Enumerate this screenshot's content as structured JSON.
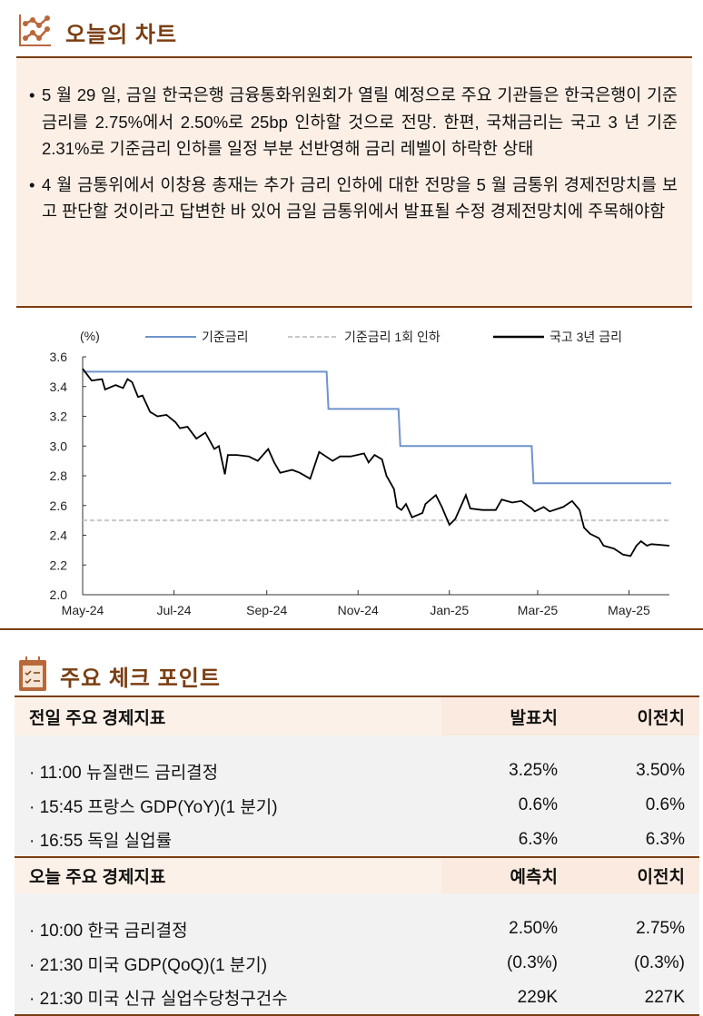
{
  "chart_section": {
    "title": "오늘의 차트",
    "icon": "line-chart-icon"
  },
  "summary": {
    "bullets": [
      "5 월 29 일, 금일 한국은행 금융통화위원회가 열릴 예정으로 주요 기관들은 한국은행이 기준금리를 2.75%에서 2.50%로 25bp 인하할 것으로 전망. 한편, 국채금리는 국고 3 년 기준 2.31%로 기준금리 인하를 일정 부분 선반영해 금리 레벨이 하락한 상태",
      "4 월 금통위에서 이창용 총재는 추가 금리 인하에 대한 전망을 5 월 금통위 경제전망치를 보고 판단할 것이라고 답변한 바 있어 금일 금통위에서 발표될 수정 경제전망치에 주목해야함"
    ]
  },
  "chart_data": {
    "type": "line",
    "unit_label": "(%)",
    "ylim": [
      2.0,
      3.6
    ],
    "y_ticks": [
      "2.0",
      "2.2",
      "2.4",
      "2.6",
      "2.8",
      "3.0",
      "3.2",
      "3.4",
      "3.6"
    ],
    "x_range": [
      "2024-05-01",
      "2025-05-28"
    ],
    "x_ticks": [
      {
        "date": "2024-05-01",
        "label": "May-24"
      },
      {
        "date": "2024-07-01",
        "label": "Jul-24"
      },
      {
        "date": "2024-09-01",
        "label": "Sep-24"
      },
      {
        "date": "2024-11-01",
        "label": "Nov-24"
      },
      {
        "date": "2025-01-01",
        "label": "Jan-25"
      },
      {
        "date": "2025-03-01",
        "label": "Mar-25"
      },
      {
        "date": "2025-05-01",
        "label": "May-25"
      }
    ],
    "grid": false,
    "legend_position": "top",
    "series": [
      {
        "name": "기준금리",
        "color": "#6f93cc",
        "style": "step",
        "points": [
          [
            "2024-05-01",
            3.5
          ],
          [
            "2024-10-11",
            3.25
          ],
          [
            "2024-11-28",
            3.0
          ],
          [
            "2025-02-25",
            2.75
          ],
          [
            "2025-05-28",
            2.75
          ]
        ]
      },
      {
        "name": "기준금리 1회 인하",
        "color": "#c8c8c8",
        "style": "dashed",
        "points": [
          [
            "2024-05-01",
            2.5
          ],
          [
            "2025-05-28",
            2.5
          ]
        ]
      },
      {
        "name": "국고 3년 금리",
        "color": "#000000",
        "style": "solid",
        "points": [
          [
            "2024-05-01",
            3.52
          ],
          [
            "2024-05-07",
            3.44
          ],
          [
            "2024-05-14",
            3.45
          ],
          [
            "2024-05-16",
            3.38
          ],
          [
            "2024-05-23",
            3.41
          ],
          [
            "2024-05-28",
            3.39
          ],
          [
            "2024-05-31",
            3.45
          ],
          [
            "2024-06-03",
            3.43
          ],
          [
            "2024-06-07",
            3.33
          ],
          [
            "2024-06-10",
            3.34
          ],
          [
            "2024-06-15",
            3.23
          ],
          [
            "2024-06-20",
            3.2
          ],
          [
            "2024-06-26",
            3.21
          ],
          [
            "2024-07-02",
            3.16
          ],
          [
            "2024-07-05",
            3.12
          ],
          [
            "2024-07-10",
            3.13
          ],
          [
            "2024-07-16",
            3.05
          ],
          [
            "2024-07-22",
            3.09
          ],
          [
            "2024-07-28",
            2.98
          ],
          [
            "2024-07-31",
            3.0
          ],
          [
            "2024-08-04",
            2.81
          ],
          [
            "2024-08-06",
            2.94
          ],
          [
            "2024-08-12",
            2.94
          ],
          [
            "2024-08-20",
            2.93
          ],
          [
            "2024-08-26",
            2.9
          ],
          [
            "2024-09-02",
            2.98
          ],
          [
            "2024-09-06",
            2.89
          ],
          [
            "2024-09-10",
            2.82
          ],
          [
            "2024-09-18",
            2.84
          ],
          [
            "2024-09-23",
            2.82
          ],
          [
            "2024-09-30",
            2.78
          ],
          [
            "2024-10-06",
            2.96
          ],
          [
            "2024-10-15",
            2.9
          ],
          [
            "2024-10-20",
            2.93
          ],
          [
            "2024-10-27",
            2.93
          ],
          [
            "2024-11-05",
            2.95
          ],
          [
            "2024-11-08",
            2.89
          ],
          [
            "2024-11-12",
            2.94
          ],
          [
            "2024-11-17",
            2.91
          ],
          [
            "2024-11-20",
            2.8
          ],
          [
            "2024-11-25",
            2.71
          ],
          [
            "2024-11-27",
            2.59
          ],
          [
            "2024-11-30",
            2.57
          ],
          [
            "2024-12-03",
            2.61
          ],
          [
            "2024-12-07",
            2.52
          ],
          [
            "2024-12-14",
            2.55
          ],
          [
            "2024-12-16",
            2.61
          ],
          [
            "2024-12-23",
            2.67
          ],
          [
            "2024-12-27",
            2.59
          ],
          [
            "2025-01-01",
            2.47
          ],
          [
            "2025-01-05",
            2.51
          ],
          [
            "2025-01-12",
            2.67
          ],
          [
            "2025-01-15",
            2.58
          ],
          [
            "2025-01-23",
            2.57
          ],
          [
            "2025-02-01",
            2.57
          ],
          [
            "2025-02-05",
            2.64
          ],
          [
            "2025-02-12",
            2.62
          ],
          [
            "2025-02-18",
            2.63
          ],
          [
            "2025-02-25",
            2.58
          ],
          [
            "2025-02-27",
            2.56
          ],
          [
            "2025-03-05",
            2.59
          ],
          [
            "2025-03-09",
            2.56
          ],
          [
            "2025-03-18",
            2.59
          ],
          [
            "2025-03-24",
            2.63
          ],
          [
            "2025-03-29",
            2.57
          ],
          [
            "2025-04-01",
            2.45
          ],
          [
            "2025-04-05",
            2.41
          ],
          [
            "2025-04-11",
            2.38
          ],
          [
            "2025-04-14",
            2.33
          ],
          [
            "2025-04-21",
            2.31
          ],
          [
            "2025-04-27",
            2.27
          ],
          [
            "2025-05-02",
            2.26
          ],
          [
            "2025-05-06",
            2.33
          ],
          [
            "2025-05-09",
            2.36
          ],
          [
            "2025-05-13",
            2.33
          ],
          [
            "2025-05-16",
            2.34
          ],
          [
            "2025-05-28",
            2.33
          ]
        ]
      }
    ]
  },
  "checkpoints": {
    "title": "주요 체크 포인트",
    "icon": "checklist-icon",
    "yesterday": {
      "header": [
        "전일 주요 경제지표",
        "발표치",
        "이전치"
      ],
      "rows": [
        [
          "· 11:00 뉴질랜드 금리결정",
          "3.25%",
          "3.50%"
        ],
        [
          "· 15:45 프랑스 GDP(YoY)(1 분기)",
          "0.6%",
          "0.6%"
        ],
        [
          "· 16:55 독일 실업률",
          "6.3%",
          "6.3%"
        ]
      ]
    },
    "today": {
      "header": [
        "오늘 주요 경제지표",
        "예측치",
        "이전치"
      ],
      "rows": [
        [
          "· 10:00 한국 금리결정",
          "2.50%",
          "2.75%"
        ],
        [
          "· 21:30 미국 GDP(QoQ)(1 분기)",
          "(0.3%)",
          "(0.3%)"
        ],
        [
          "· 21:30 미국 신규 실업수당청구건수",
          "229K",
          "227K"
        ]
      ]
    }
  },
  "colors": {
    "accent": "#7a3e12",
    "summary_bg": "#fbefe6",
    "row_bg": "#f2f2f2"
  }
}
